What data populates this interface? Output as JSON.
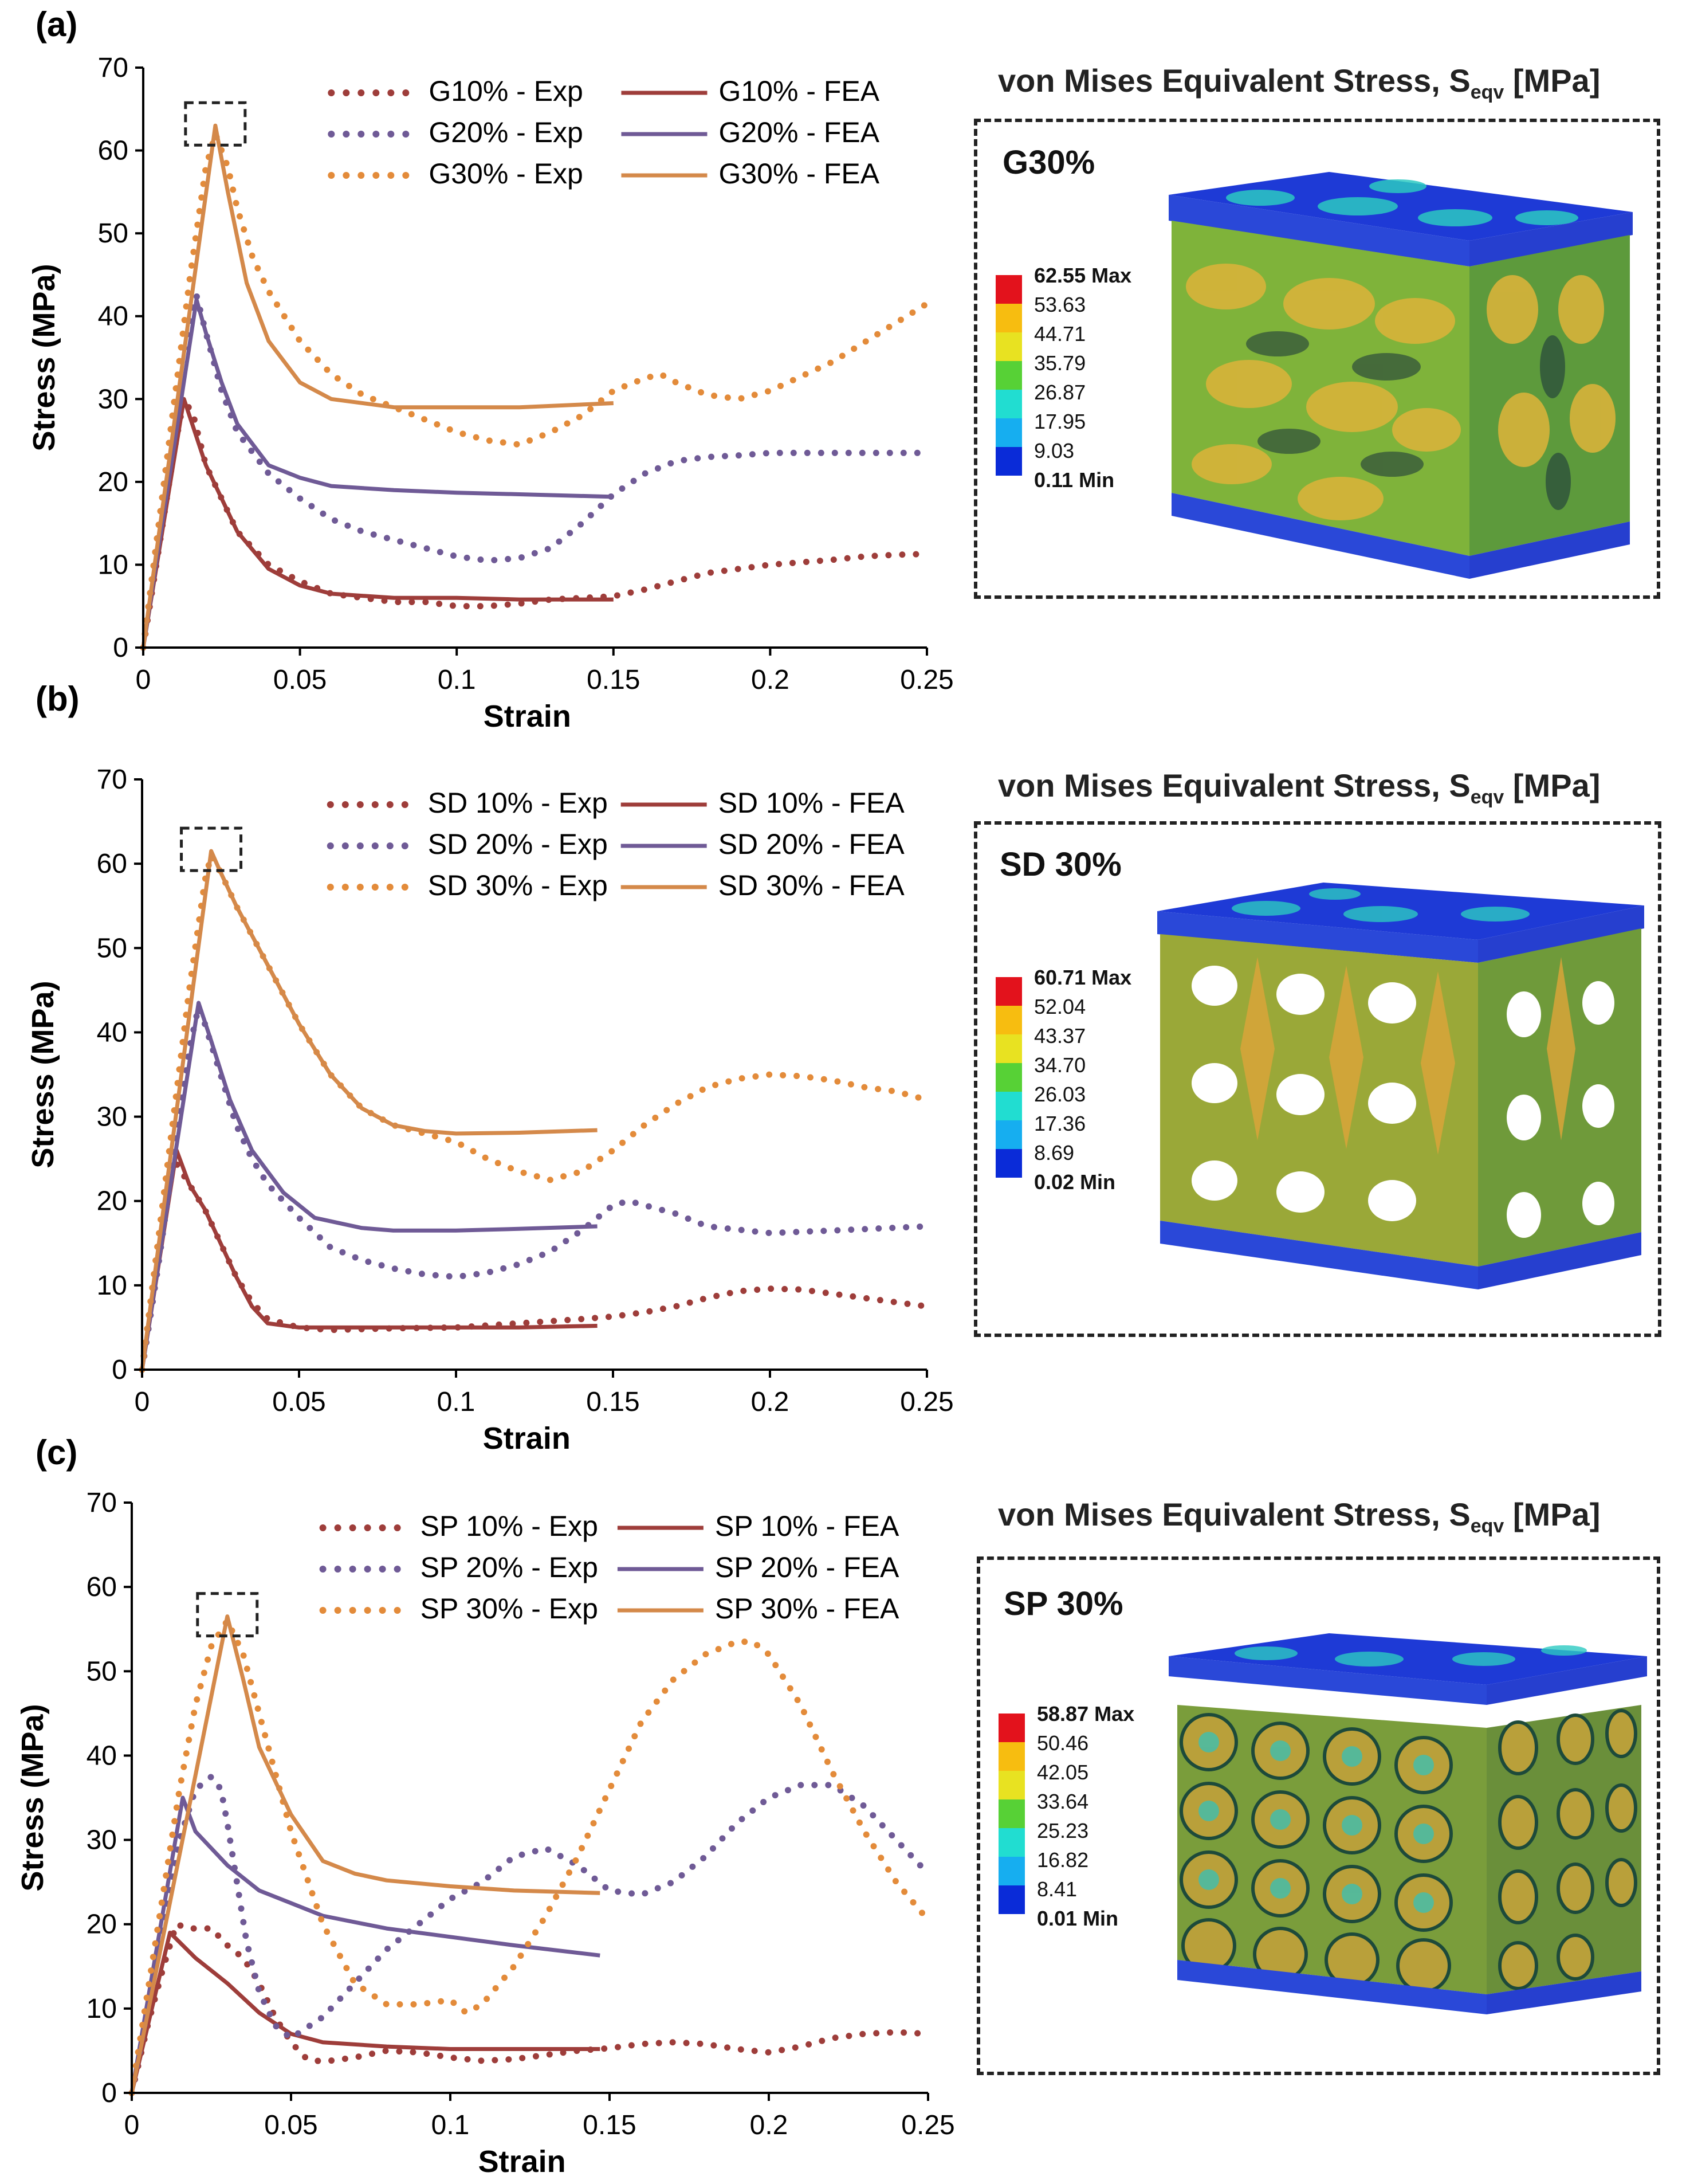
{
  "panels": [
    {
      "letter": "(a)",
      "xlabel": "Strain",
      "ylabel": "Stress (MPa)",
      "model_label": "G30%",
      "stress_title_main": "von Mises Equivalent Stress, S",
      "stress_title_sub": "eqv",
      "stress_title_unit": " [MPa]",
      "colorbar": {
        "max": "62.55 Max",
        "levels": [
          "53.63",
          "44.71",
          "35.79",
          "26.87",
          "17.95",
          "9.03"
        ],
        "min": "0.11 Min"
      }
    },
    {
      "letter": "(b)",
      "xlabel": "Strain",
      "ylabel": "Stress (MPa)",
      "model_label": "SD 30%",
      "stress_title_main": "von Mises Equivalent Stress, S",
      "stress_title_sub": "eqv",
      "stress_title_unit": " [MPa]",
      "colorbar": {
        "max": "60.71 Max",
        "levels": [
          "52.04",
          "43.37",
          "34.70",
          "26.03",
          "17.36",
          "8.69"
        ],
        "min": "0.02 Min"
      }
    },
    {
      "letter": "(c)",
      "xlabel": "Strain",
      "ylabel": "Stress (MPa)",
      "model_label": "SP 30%",
      "stress_title_main": "von Mises Equivalent Stress, S",
      "stress_title_sub": "eqv",
      "stress_title_unit": " [MPa]",
      "colorbar": {
        "max": "58.87 Max",
        "levels": [
          "50.46",
          "42.05",
          "33.64",
          "25.23",
          "16.82",
          "8.41"
        ],
        "min": "0.01 Min"
      }
    }
  ],
  "colors": {
    "c10": "#9e3d3a",
    "c20": "#6f5a96",
    "c30": "#e38b3a",
    "c30_fea": "#d4894a",
    "colorbar": [
      "#e3121c",
      "#f7bd10",
      "#e8e221",
      "#57d136",
      "#21ddd1",
      "#16aef0",
      "#0a2bd8"
    ]
  },
  "chart_data": [
    {
      "type": "line",
      "xlabel": "Strain",
      "ylabel": "Stress (MPa)",
      "xlim": [
        0,
        0.25
      ],
      "ylim": [
        0,
        70
      ],
      "xticks": [
        "0",
        "0.05",
        "0.1",
        "0.15",
        "0.2",
        "0.25"
      ],
      "yticks": [
        "0",
        "10",
        "20",
        "30",
        "40",
        "50",
        "60",
        "70"
      ],
      "legend_position": "top-right",
      "peak_marker": [
        0.023,
        63
      ],
      "series": [
        {
          "name": "G10% - Exp",
          "style": "dotted",
          "color": "c10",
          "x": [
            0,
            0.005,
            0.01,
            0.013,
            0.016,
            0.02,
            0.025,
            0.03,
            0.035,
            0.04,
            0.05,
            0.06,
            0.07,
            0.08,
            0.09,
            0.1,
            0.11,
            0.12,
            0.13,
            0.14,
            0.15,
            0.16,
            0.17,
            0.18,
            0.19,
            0.2,
            0.21,
            0.22,
            0.23,
            0.24,
            0.25
          ],
          "y": [
            0,
            12,
            24,
            30,
            28,
            22,
            18,
            14,
            12,
            10,
            8,
            6.5,
            6,
            5.5,
            5.5,
            5,
            5,
            5.3,
            5.8,
            6,
            6.2,
            7,
            8,
            9,
            9.5,
            10,
            10.3,
            10.6,
            11,
            11.2,
            11.3
          ]
        },
        {
          "name": "G10% - FEA",
          "style": "solid",
          "color": "c10",
          "x": [
            0,
            0.013,
            0.02,
            0.03,
            0.04,
            0.05,
            0.06,
            0.08,
            0.1,
            0.12,
            0.15
          ],
          "y": [
            0,
            30,
            22,
            14,
            9.5,
            7.5,
            6.5,
            6,
            6,
            5.8,
            5.8
          ]
        },
        {
          "name": "G20% - Exp",
          "style": "dotted",
          "color": "c20",
          "x": [
            0,
            0.005,
            0.01,
            0.015,
            0.017,
            0.02,
            0.025,
            0.03,
            0.04,
            0.05,
            0.06,
            0.07,
            0.08,
            0.09,
            0.1,
            0.11,
            0.12,
            0.13,
            0.14,
            0.15,
            0.16,
            0.17,
            0.18,
            0.19,
            0.2,
            0.22,
            0.25
          ],
          "y": [
            0,
            15,
            30,
            40,
            42.5,
            38,
            31,
            26,
            21,
            18,
            15.5,
            14,
            13,
            12,
            11,
            10.5,
            10.8,
            12,
            15,
            18.5,
            21,
            22.5,
            23,
            23.2,
            23.5,
            23.5,
            23.5
          ]
        },
        {
          "name": "G20% - FEA",
          "style": "solid",
          "color": "c20",
          "x": [
            0,
            0.017,
            0.02,
            0.025,
            0.03,
            0.04,
            0.05,
            0.06,
            0.08,
            0.1,
            0.12,
            0.15
          ],
          "y": [
            0,
            42,
            38,
            32,
            27,
            22,
            20.5,
            19.5,
            19,
            18.7,
            18.5,
            18.2
          ]
        },
        {
          "name": "G30% - Exp",
          "style": "dotted",
          "color": "c30",
          "x": [
            0,
            0.005,
            0.01,
            0.015,
            0.02,
            0.023,
            0.027,
            0.03,
            0.035,
            0.04,
            0.05,
            0.06,
            0.07,
            0.08,
            0.09,
            0.1,
            0.11,
            0.12,
            0.13,
            0.14,
            0.15,
            0.16,
            0.165,
            0.17,
            0.18,
            0.19,
            0.2,
            0.22,
            0.25
          ],
          "y": [
            0,
            15,
            30,
            45,
            58,
            62,
            58,
            53,
            47,
            43,
            37,
            33,
            30.5,
            29,
            27.5,
            26,
            25,
            24.5,
            26,
            28,
            31,
            32.5,
            33,
            32,
            30.5,
            30,
            31,
            34.5,
            41.5
          ]
        },
        {
          "name": "G30% - FEA",
          "style": "solid",
          "color": "c30_fea",
          "x": [
            0,
            0.023,
            0.027,
            0.033,
            0.04,
            0.05,
            0.06,
            0.08,
            0.1,
            0.12,
            0.15
          ],
          "y": [
            0,
            63,
            55,
            44,
            37,
            32,
            30,
            29,
            29,
            29,
            29.5
          ]
        }
      ],
      "legend": [
        "G10% - Exp",
        "G10% - FEA",
        "G20% - Exp",
        "G20% - FEA",
        "G30% - Exp",
        "G30% - FEA"
      ]
    },
    {
      "type": "line",
      "xlabel": "Strain",
      "ylabel": "Stress (MPa)",
      "xlim": [
        0,
        0.25
      ],
      "ylim": [
        0,
        70
      ],
      "xticks": [
        "0",
        "0.05",
        "0.1",
        "0.15",
        "0.2",
        "0.25"
      ],
      "yticks": [
        "0",
        "10",
        "20",
        "30",
        "40",
        "50",
        "60",
        "70"
      ],
      "legend_position": "top-right",
      "peak_marker": [
        0.022,
        61.5
      ],
      "series": [
        {
          "name": "SD 10% - Exp",
          "style": "dotted",
          "color": "c10",
          "x": [
            0,
            0.005,
            0.01,
            0.015,
            0.02,
            0.025,
            0.03,
            0.035,
            0.04,
            0.05,
            0.06,
            0.07,
            0.08,
            0.1,
            0.12,
            0.14,
            0.15,
            0.16,
            0.17,
            0.18,
            0.19,
            0.2,
            0.21,
            0.22,
            0.23,
            0.24,
            0.25
          ],
          "y": [
            0,
            12,
            25,
            22,
            19,
            15,
            11,
            8,
            6,
            5,
            4.7,
            4.8,
            4.9,
            5,
            5.5,
            6,
            6.3,
            6.8,
            7.5,
            8.5,
            9.3,
            9.6,
            9.5,
            9,
            8.5,
            8,
            7.5
          ]
        },
        {
          "name": "SD 10% - FEA",
          "style": "solid",
          "color": "c10",
          "x": [
            0,
            0.011,
            0.015,
            0.02,
            0.025,
            0.03,
            0.035,
            0.04,
            0.05,
            0.08,
            0.1,
            0.12,
            0.145
          ],
          "y": [
            0,
            26,
            22,
            19,
            15,
            11,
            7.5,
            5.5,
            5,
            5,
            5,
            5,
            5.2
          ]
        },
        {
          "name": "SD 20% - Exp",
          "style": "dotted",
          "color": "c20",
          "x": [
            0,
            0.005,
            0.01,
            0.015,
            0.018,
            0.02,
            0.025,
            0.03,
            0.035,
            0.04,
            0.05,
            0.06,
            0.07,
            0.08,
            0.09,
            0.1,
            0.11,
            0.12,
            0.13,
            0.14,
            0.15,
            0.155,
            0.16,
            0.17,
            0.18,
            0.2,
            0.22,
            0.25
          ],
          "y": [
            0,
            12,
            25,
            38,
            43,
            41,
            35,
            29,
            25,
            22,
            18,
            14.5,
            13,
            12,
            11.3,
            11,
            11.5,
            12.5,
            14,
            16.5,
            19.5,
            20,
            19.5,
            18.5,
            17,
            16.2,
            16.5,
            17
          ]
        },
        {
          "name": "SD 20% - FEA",
          "style": "solid",
          "color": "c20",
          "x": [
            0,
            0.018,
            0.022,
            0.028,
            0.035,
            0.045,
            0.055,
            0.07,
            0.08,
            0.1,
            0.12,
            0.145
          ],
          "y": [
            0,
            43.5,
            39,
            32,
            26,
            21,
            18,
            16.8,
            16.5,
            16.5,
            16.7,
            17
          ]
        },
        {
          "name": "SD 30% - Exp",
          "style": "dotted",
          "color": "c30",
          "x": [
            0,
            0.005,
            0.01,
            0.015,
            0.02,
            0.022,
            0.025,
            0.03,
            0.04,
            0.05,
            0.06,
            0.07,
            0.08,
            0.09,
            0.1,
            0.11,
            0.12,
            0.13,
            0.14,
            0.15,
            0.16,
            0.17,
            0.18,
            0.19,
            0.2,
            0.21,
            0.22,
            0.23,
            0.24,
            0.25
          ],
          "y": [
            0,
            15,
            30,
            45,
            58,
            61,
            59,
            55,
            48,
            41,
            35,
            31,
            29,
            28,
            27,
            25,
            23.5,
            22.5,
            23.5,
            26,
            29,
            31.5,
            33.5,
            34.5,
            35,
            34.8,
            34.3,
            33.5,
            33,
            32
          ]
        },
        {
          "name": "SD 30% - FEA",
          "style": "solid",
          "color": "c30_fea",
          "x": [
            0,
            0.022,
            0.025,
            0.03,
            0.04,
            0.05,
            0.06,
            0.07,
            0.08,
            0.09,
            0.1,
            0.12,
            0.145
          ],
          "y": [
            0,
            61.5,
            59,
            55,
            48,
            41,
            35,
            31,
            29,
            28.3,
            28,
            28.1,
            28.4
          ]
        }
      ],
      "legend": [
        "SD 10% - Exp",
        "SD 10% - FEA",
        "SD 20% - Exp",
        "SD 20% - FEA",
        "SD 30% - Exp",
        "SD 30% - FEA"
      ]
    },
    {
      "type": "line",
      "xlabel": "Strain",
      "ylabel": "Stress (MPa)",
      "xlim": [
        0,
        0.25
      ],
      "ylim": [
        0,
        70
      ],
      "xticks": [
        "0",
        "0.05",
        "0.1",
        "0.15",
        "0.2",
        "0.25"
      ],
      "yticks": [
        "0",
        "10",
        "20",
        "30",
        "40",
        "50",
        "60",
        "70"
      ],
      "legend_position": "top-right",
      "peak_marker": [
        0.03,
        56.5
      ],
      "series": [
        {
          "name": "SP 10% - Exp",
          "style": "dotted",
          "color": "c10",
          "x": [
            0,
            0.005,
            0.01,
            0.014,
            0.018,
            0.025,
            0.03,
            0.035,
            0.04,
            0.045,
            0.05,
            0.055,
            0.06,
            0.07,
            0.08,
            0.09,
            0.1,
            0.11,
            0.12,
            0.13,
            0.14,
            0.15,
            0.16,
            0.17,
            0.18,
            0.19,
            0.2,
            0.21,
            0.22,
            0.23,
            0.24,
            0.25
          ],
          "y": [
            0,
            8,
            15,
            20,
            19.5,
            19.5,
            17.5,
            16,
            13,
            9,
            6,
            4,
            3.7,
            4.2,
            5,
            4.8,
            4.2,
            3.8,
            4,
            4.5,
            5,
            5.3,
            5.8,
            6,
            5.8,
            5.2,
            4.8,
            5.5,
            6.5,
            7,
            7.2,
            7
          ]
        },
        {
          "name": "SP 10% - FEA",
          "style": "solid",
          "color": "c10",
          "x": [
            0,
            0.012,
            0.02,
            0.03,
            0.04,
            0.05,
            0.06,
            0.08,
            0.1,
            0.12,
            0.147
          ],
          "y": [
            0,
            19,
            16,
            13,
            9.5,
            7,
            6,
            5.5,
            5.2,
            5.2,
            5.2
          ]
        },
        {
          "name": "SP 20% - Exp",
          "style": "dotted",
          "color": "c20",
          "x": [
            0,
            0.005,
            0.01,
            0.015,
            0.02,
            0.025,
            0.028,
            0.03,
            0.033,
            0.036,
            0.04,
            0.045,
            0.05,
            0.06,
            0.07,
            0.08,
            0.09,
            0.1,
            0.11,
            0.12,
            0.13,
            0.14,
            0.15,
            0.16,
            0.17,
            0.18,
            0.19,
            0.2,
            0.21,
            0.22,
            0.23,
            0.24,
            0.25
          ],
          "y": [
            0,
            10,
            20,
            30,
            36,
            37.5,
            36,
            32,
            25,
            18,
            12,
            8,
            6.5,
            9,
            13,
            17,
            20,
            23,
            25,
            28,
            29,
            27,
            24,
            23.5,
            25,
            28,
            32,
            35,
            36.5,
            36.5,
            34,
            30,
            26
          ]
        },
        {
          "name": "SP 20% - FEA",
          "style": "solid",
          "color": "c20",
          "x": [
            0,
            0.016,
            0.02,
            0.03,
            0.04,
            0.05,
            0.06,
            0.08,
            0.1,
            0.12,
            0.147
          ],
          "y": [
            0,
            35,
            31,
            27,
            24,
            22.5,
            21,
            19.5,
            18.5,
            17.5,
            16.3
          ]
        },
        {
          "name": "SP 30% - Exp",
          "style": "dotted",
          "color": "c30",
          "x": [
            0,
            0.005,
            0.01,
            0.015,
            0.02,
            0.025,
            0.03,
            0.035,
            0.04,
            0.05,
            0.06,
            0.07,
            0.08,
            0.09,
            0.1,
            0.105,
            0.11,
            0.12,
            0.13,
            0.14,
            0.15,
            0.16,
            0.17,
            0.18,
            0.19,
            0.195,
            0.2,
            0.21,
            0.22,
            0.23,
            0.24,
            0.25
          ],
          "y": [
            0,
            12,
            24,
            36,
            46,
            53,
            56,
            52,
            45,
            31,
            20,
            13,
            10.5,
            10.5,
            11,
            9.5,
            10.5,
            15,
            21,
            28,
            36,
            44,
            49,
            52,
            53.5,
            53.5,
            52,
            46,
            38,
            31,
            25,
            20.5
          ]
        },
        {
          "name": "SP 30% - FEA",
          "style": "solid",
          "color": "c30_fea",
          "x": [
            0,
            0.03,
            0.035,
            0.04,
            0.05,
            0.06,
            0.07,
            0.08,
            0.1,
            0.12,
            0.147
          ],
          "y": [
            0,
            56.5,
            49,
            41,
            33,
            27.5,
            26,
            25.2,
            24.5,
            24,
            23.7
          ]
        }
      ],
      "legend": [
        "SP 10% - Exp",
        "SP 10% - FEA",
        "SP 20% - Exp",
        "SP 20% - FEA",
        "SP 30% - Exp",
        "SP 30% - FEA"
      ]
    }
  ]
}
